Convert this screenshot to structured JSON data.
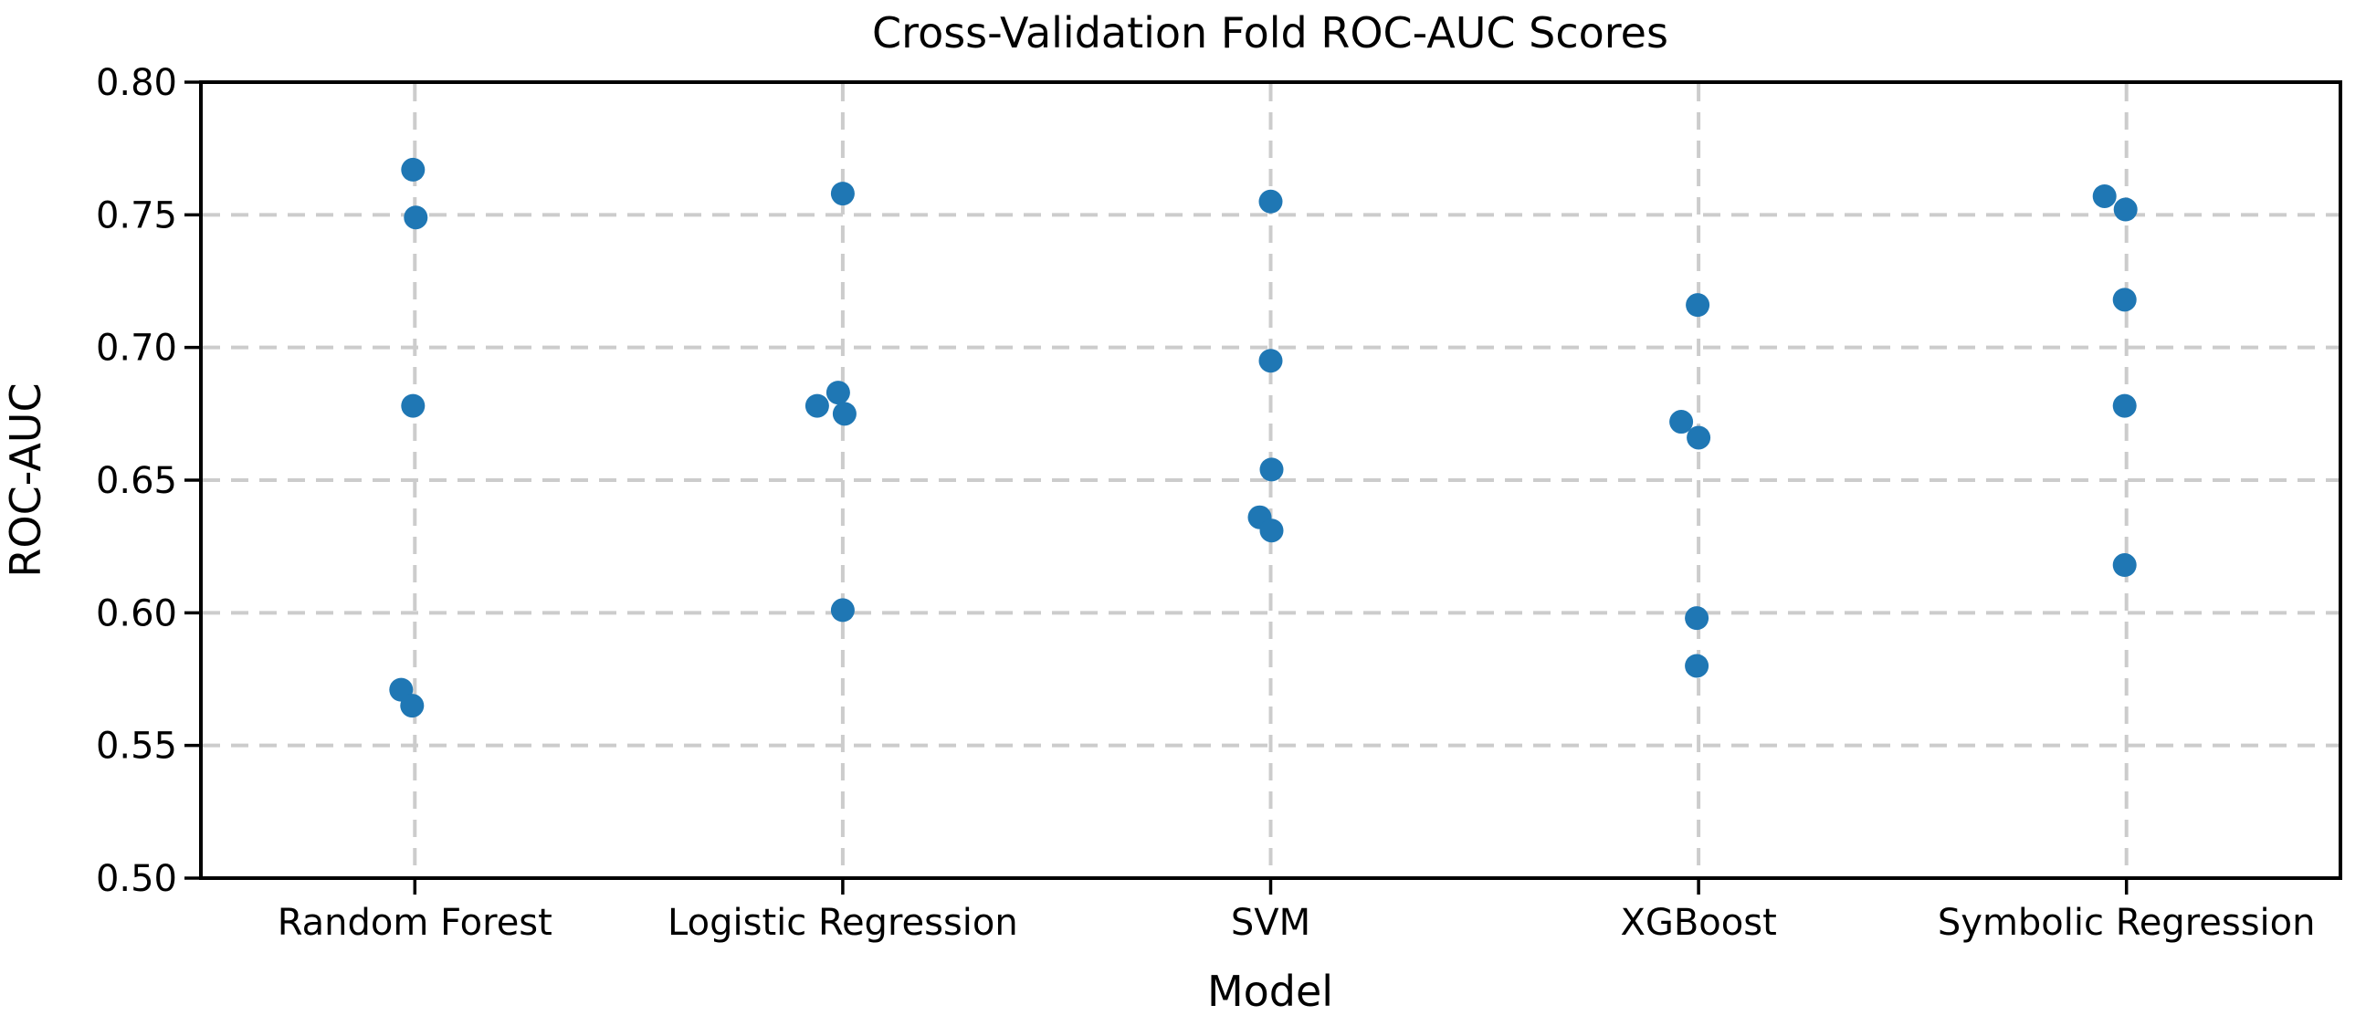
{
  "chart_data": {
    "type": "scatter",
    "subtype": "strip-plot",
    "title": "Cross-Validation Fold ROC-AUC Scores",
    "xlabel": "Model",
    "ylabel": "ROC-AUC",
    "ylim": [
      0.5,
      0.8
    ],
    "yticks": [
      0.5,
      0.55,
      0.6,
      0.65,
      0.7,
      0.75,
      0.8
    ],
    "ytick_labels": [
      "0.50",
      "0.55",
      "0.60",
      "0.65",
      "0.70",
      "0.75",
      "0.80"
    ],
    "categories": [
      "Random Forest",
      "Logistic Regression",
      "SVM",
      "XGBoost",
      "Symbolic Regression"
    ],
    "grid": "dashed-on",
    "legend": "none",
    "series": [
      {
        "name": "Random Forest",
        "values": [
          0.767,
          0.749,
          0.678,
          0.571,
          0.565
        ],
        "x_offsets": [
          -2,
          1,
          -2,
          -15,
          -3
        ]
      },
      {
        "name": "Logistic Regression",
        "values": [
          0.758,
          0.683,
          0.678,
          0.675,
          0.601
        ],
        "x_offsets": [
          0,
          -5,
          -28,
          2,
          0
        ]
      },
      {
        "name": "SVM",
        "values": [
          0.755,
          0.695,
          0.654,
          0.636,
          0.631
        ],
        "x_offsets": [
          0,
          0,
          1,
          -12,
          1
        ]
      },
      {
        "name": "XGBoost",
        "values": [
          0.716,
          0.672,
          0.666,
          0.598,
          0.58
        ],
        "x_offsets": [
          -1,
          -19,
          0,
          -2,
          -2
        ]
      },
      {
        "name": "Symbolic Regression",
        "values": [
          0.757,
          0.752,
          0.718,
          0.678,
          0.618
        ],
        "x_offsets": [
          -24,
          -1,
          -2,
          -2,
          -2
        ]
      }
    ],
    "colors": {
      "point": "#1f77b4",
      "grid": "#cccccc",
      "axis": "#000000",
      "background": "#ffffff"
    }
  }
}
